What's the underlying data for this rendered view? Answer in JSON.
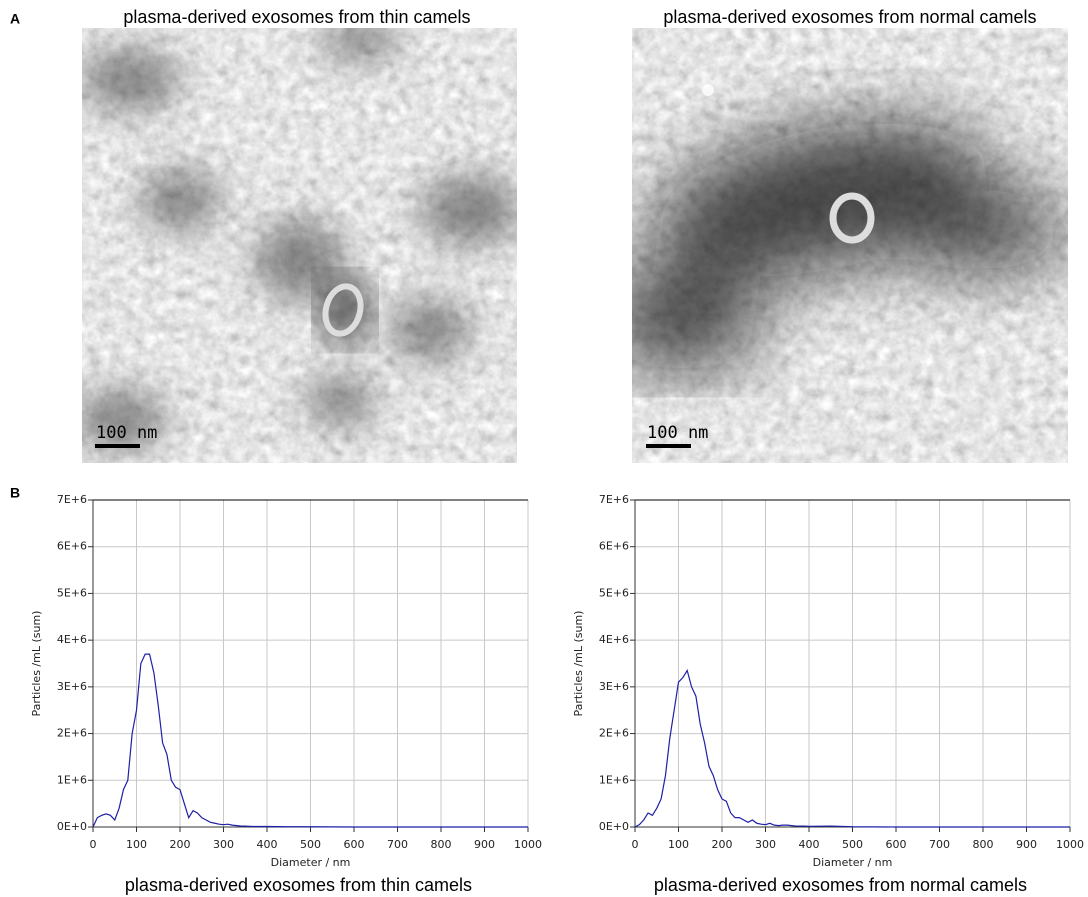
{
  "panel_labels": [
    "A",
    "B"
  ],
  "micrographs": [
    {
      "title": "plasma-derived exosomes from thin camels",
      "scale_bar": "100 nm"
    },
    {
      "title": "plasma-derived exosomes from normal camels",
      "scale_bar": "100 nm"
    }
  ],
  "chart_data": [
    {
      "type": "line",
      "title": "plasma-derived exosomes from thin camels",
      "xlabel": "Diameter / nm",
      "ylabel": "Particles /mL (sum)",
      "color": "#1f1fa8",
      "grid": true,
      "x": [
        0,
        10,
        20,
        30,
        40,
        50,
        60,
        70,
        80,
        90,
        100,
        110,
        120,
        130,
        140,
        150,
        160,
        170,
        180,
        190,
        200,
        210,
        220,
        230,
        240,
        250,
        260,
        270,
        280,
        290,
        300,
        310,
        320,
        330,
        340,
        350,
        360,
        370,
        380,
        390,
        400,
        450,
        500,
        600,
        700,
        800,
        900,
        1000
      ],
      "values": [
        0,
        200000,
        250000,
        280000,
        250000,
        150000,
        400000,
        800000,
        1000000,
        2000000,
        2500000,
        3500000,
        3700000,
        3700000,
        3300000,
        2600000,
        1800000,
        1550000,
        1000000,
        850000,
        800000,
        500000,
        200000,
        350000,
        300000,
        200000,
        150000,
        100000,
        80000,
        60000,
        50000,
        60000,
        40000,
        30000,
        20000,
        20000,
        15000,
        10000,
        10000,
        10000,
        10000,
        5000,
        5000,
        0,
        0,
        0,
        0,
        0
      ],
      "xlim": [
        0,
        1000
      ],
      "xticks": [
        0,
        100,
        200,
        300,
        400,
        500,
        600,
        700,
        800,
        900,
        1000
      ],
      "ylim": [
        0,
        7000000
      ],
      "yticks": [
        {
          "value": 0,
          "label": "0E+0"
        },
        {
          "value": 1000000,
          "label": "1E+6"
        },
        {
          "value": 2000000,
          "label": "2E+6"
        },
        {
          "value": 3000000,
          "label": "3E+6"
        },
        {
          "value": 4000000,
          "label": "4E+6"
        },
        {
          "value": 5000000,
          "label": "5E+6"
        },
        {
          "value": 6000000,
          "label": "6E+6"
        },
        {
          "value": 7000000,
          "label": "7E+6"
        }
      ]
    },
    {
      "type": "line",
      "title": "plasma-derived exosomes from normal camels",
      "xlabel": "Diameter / nm",
      "ylabel": "Particles /mL (sum)",
      "color": "#1f1fa8",
      "grid": true,
      "x": [
        0,
        10,
        20,
        30,
        40,
        50,
        60,
        70,
        80,
        90,
        100,
        110,
        120,
        130,
        140,
        150,
        160,
        170,
        180,
        190,
        200,
        210,
        220,
        230,
        240,
        250,
        260,
        270,
        280,
        290,
        300,
        310,
        320,
        330,
        340,
        350,
        360,
        370,
        380,
        390,
        400,
        450,
        500,
        600,
        700,
        800,
        900,
        1000
      ],
      "values": [
        0,
        50000,
        150000,
        300000,
        250000,
        400000,
        600000,
        1100000,
        1900000,
        2500000,
        3100000,
        3200000,
        3350000,
        3000000,
        2800000,
        2200000,
        1800000,
        1300000,
        1100000,
        800000,
        600000,
        550000,
        300000,
        200000,
        200000,
        150000,
        100000,
        150000,
        80000,
        60000,
        50000,
        80000,
        40000,
        30000,
        40000,
        40000,
        30000,
        20000,
        20000,
        20000,
        15000,
        20000,
        5000,
        0,
        0,
        0,
        0,
        0
      ],
      "xlim": [
        0,
        1000
      ],
      "xticks": [
        0,
        100,
        200,
        300,
        400,
        500,
        600,
        700,
        800,
        900,
        1000
      ],
      "ylim": [
        0,
        7000000
      ],
      "yticks": [
        {
          "value": 0,
          "label": "0E+0"
        },
        {
          "value": 1000000,
          "label": "1E+6"
        },
        {
          "value": 2000000,
          "label": "2E+6"
        },
        {
          "value": 3000000,
          "label": "3E+6"
        },
        {
          "value": 4000000,
          "label": "4E+6"
        },
        {
          "value": 5000000,
          "label": "5E+6"
        },
        {
          "value": 6000000,
          "label": "6E+6"
        },
        {
          "value": 7000000,
          "label": "7E+6"
        }
      ]
    }
  ]
}
